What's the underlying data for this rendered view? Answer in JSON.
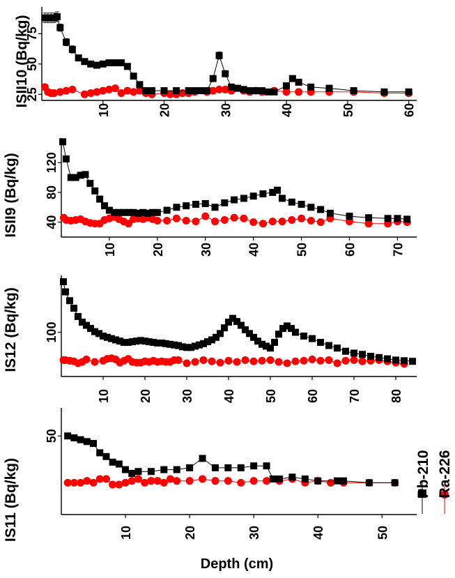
{
  "colors": {
    "pb": "#000000",
    "ra": "#ff0000",
    "axis": "#000000"
  },
  "legend": {
    "pb_label": "Pb-210",
    "ra_label": "Ra-226",
    "placement": "right, vertical"
  },
  "xlabel": "Depth (cm)",
  "chart_data": [
    {
      "type": "line",
      "ylabel": "ISII10 (Bq/kg)",
      "xlim": [
        0,
        61.3
      ],
      "ylim": [
        20,
        97
      ],
      "xticks": [
        10,
        20,
        30,
        40,
        50,
        60
      ],
      "yticks": [
        25,
        50,
        75
      ],
      "series": [
        {
          "name": "Pb-210",
          "marker": "square",
          "x": [
            0.5,
            1,
            1.5,
            2,
            2.5,
            3,
            4,
            5,
            6,
            7,
            8,
            9,
            10,
            11,
            12,
            13,
            14,
            15,
            16,
            17,
            18,
            20,
            22,
            24,
            25,
            26,
            27,
            28,
            29,
            30,
            31,
            32,
            33,
            34,
            35,
            36,
            37,
            38,
            40,
            41,
            42,
            44,
            47,
            51,
            56,
            60
          ],
          "y": [
            88,
            88,
            88,
            88,
            89,
            80,
            68,
            62,
            55,
            52,
            50,
            49,
            50,
            51,
            51,
            51,
            48,
            40,
            33,
            28,
            28,
            28,
            28,
            28,
            28,
            28,
            28,
            38,
            57,
            42,
            31,
            30,
            29,
            28,
            28,
            28,
            27,
            27,
            32,
            38,
            35,
            31,
            30,
            28,
            27,
            27
          ],
          "error": [
            4,
            4,
            4,
            4,
            4,
            3,
            3,
            3,
            2,
            2,
            2,
            2,
            2,
            2,
            2,
            2,
            2,
            0,
            0,
            0,
            0,
            0,
            0,
            0,
            0,
            0,
            0,
            0,
            3,
            0,
            0,
            0,
            0,
            0,
            0,
            0,
            0,
            0,
            0,
            0,
            0,
            0,
            0,
            0,
            0,
            0
          ]
        },
        {
          "name": "Ra-226",
          "marker": "circle",
          "x": [
            0.5,
            1,
            1.5,
            2,
            3,
            4,
            5,
            7,
            8,
            9,
            10,
            11,
            12,
            13,
            14,
            15,
            16,
            17,
            18,
            20,
            21,
            22,
            23,
            24,
            25,
            27,
            28,
            29,
            30,
            31,
            33,
            34,
            35,
            36,
            38,
            40,
            42,
            44,
            47,
            51,
            56,
            60
          ],
          "y": [
            31,
            27,
            26,
            26,
            27,
            28,
            29,
            25,
            26,
            27,
            28,
            29,
            30,
            26,
            28,
            27,
            28,
            26,
            25,
            26,
            25,
            25,
            26,
            26,
            27,
            27,
            28,
            29,
            29,
            28,
            28,
            27,
            28,
            27,
            28,
            27,
            27,
            27,
            27,
            27,
            26,
            26
          ]
        }
      ]
    },
    {
      "type": "line",
      "ylabel": "ISII9 (Bq/kg)",
      "xlim": [
        0,
        74
      ],
      "ylim": [
        20,
        153
      ],
      "xticks": [
        10,
        20,
        30,
        40,
        50,
        60,
        70
      ],
      "yticks": [
        40,
        80,
        120
      ],
      "series": [
        {
          "name": "Pb-210",
          "marker": "square",
          "x": [
            0.3,
            1,
            2,
            3,
            4,
            5,
            6,
            7,
            8,
            9,
            10,
            11,
            12,
            13,
            14,
            15,
            16,
            17,
            18,
            19,
            20,
            22,
            24,
            26,
            28,
            30,
            32,
            34,
            36,
            38,
            40,
            42,
            44,
            45,
            46,
            48,
            50,
            52,
            54,
            56,
            60,
            64,
            68,
            70,
            72
          ],
          "y": [
            148,
            125,
            100,
            100,
            103,
            104,
            92,
            82,
            71,
            62,
            56,
            53,
            53,
            53,
            53,
            53,
            52,
            53,
            52,
            53,
            53,
            56,
            60,
            62,
            64,
            65,
            60,
            66,
            70,
            72,
            75,
            78,
            80,
            83,
            72,
            67,
            64,
            60,
            57,
            52,
            48,
            46,
            45,
            45,
            44
          ]
        },
        {
          "name": "Ra-226",
          "marker": "circle",
          "x": [
            0.5,
            1,
            2,
            3,
            4,
            5,
            6,
            7,
            8,
            9,
            10,
            11,
            12,
            13,
            14,
            15,
            16,
            17,
            18,
            19,
            20,
            22,
            24,
            26,
            28,
            30,
            32,
            34,
            36,
            38,
            40,
            42,
            44,
            46,
            48,
            50,
            52,
            54,
            56,
            60,
            64,
            68,
            70,
            72
          ],
          "y": [
            46,
            43,
            42,
            43,
            44,
            41,
            39,
            38,
            38,
            43,
            45,
            47,
            44,
            41,
            38,
            44,
            45,
            44,
            46,
            44,
            42,
            42,
            45,
            42,
            41,
            48,
            41,
            43,
            46,
            45,
            40,
            38,
            41,
            41,
            43,
            45,
            42,
            40,
            45,
            41,
            38,
            38,
            41,
            40
          ]
        }
      ]
    },
    {
      "type": "line",
      "ylabel": "IS12 (Bq/kg)",
      "xlim": [
        0,
        85
      ],
      "ylim": [
        30,
        190
      ],
      "xticks": [
        10,
        20,
        30,
        40,
        50,
        60,
        70,
        80
      ],
      "yticks": [
        100
      ],
      "series": [
        {
          "name": "Pb-210",
          "marker": "square",
          "x": [
            0.5,
            1,
            2,
            3,
            4,
            5,
            6,
            7,
            8,
            9,
            10,
            11,
            12,
            13,
            14,
            15,
            16,
            17,
            18,
            19,
            20,
            21,
            22,
            23,
            24,
            25,
            26,
            27,
            28,
            29,
            30,
            31,
            32,
            33,
            34,
            35,
            36,
            37,
            38,
            39,
            40,
            41,
            42,
            43,
            44,
            45,
            46,
            47,
            48,
            49,
            50,
            51,
            52,
            53,
            54,
            55,
            56,
            58,
            60,
            62,
            64,
            66,
            68,
            70,
            72,
            74,
            76,
            78,
            80,
            82,
            84
          ],
          "y": [
            180,
            164,
            150,
            138,
            125,
            116,
            111,
            106,
            101,
            98,
            94,
            92,
            90,
            88,
            86,
            84,
            84,
            85,
            86,
            87,
            86,
            85,
            84,
            83,
            83,
            82,
            81,
            80,
            79,
            77,
            76,
            76,
            78,
            80,
            82,
            85,
            88,
            92,
            98,
            107,
            116,
            122,
            117,
            111,
            104,
            98,
            92,
            86,
            81,
            78,
            75,
            84,
            97,
            106,
            110,
            106,
            100,
            94,
            90,
            84,
            79,
            75,
            70,
            67,
            65,
            62,
            60,
            58,
            56,
            55,
            54
          ]
        },
        {
          "name": "Ra-226",
          "marker": "circle",
          "x": [
            0.5,
            1,
            2,
            3,
            4,
            5,
            6,
            8,
            10,
            11,
            12,
            13,
            14,
            15,
            16,
            17,
            18,
            19,
            20,
            21,
            22,
            23,
            24,
            25,
            26,
            27,
            28,
            30,
            32,
            34,
            36,
            38,
            40,
            42,
            44,
            46,
            48,
            50,
            52,
            54,
            56,
            58,
            60,
            62,
            64,
            66,
            68,
            70,
            72,
            74,
            76,
            78,
            80,
            82
          ],
          "y": [
            56,
            56,
            55,
            54,
            51,
            53,
            57,
            53,
            55,
            58,
            59,
            57,
            52,
            55,
            58,
            53,
            52,
            52,
            54,
            53,
            55,
            53,
            54,
            53,
            53,
            56,
            56,
            51,
            53,
            56,
            54,
            52,
            55,
            53,
            56,
            54,
            55,
            56,
            53,
            51,
            54,
            55,
            57,
            55,
            56,
            51,
            55,
            56,
            54,
            55,
            56,
            54,
            52,
            50
          ]
        }
      ]
    },
    {
      "type": "line",
      "ylabel": "IS11 (Bq/kg)",
      "xlim": [
        0,
        55.4
      ],
      "ylim": [
        8,
        65
      ],
      "xticks": [
        10,
        20,
        30,
        40,
        50
      ],
      "yticks": [
        50
      ],
      "series": [
        {
          "name": "Pb-210",
          "marker": "square",
          "x": [
            1,
            2,
            3,
            4,
            5,
            6,
            7,
            8,
            9,
            10,
            11,
            12,
            14,
            16,
            18,
            20,
            22,
            24,
            26,
            28,
            30,
            32,
            33,
            34,
            36,
            38,
            40,
            43,
            44,
            48,
            52
          ],
          "y": [
            50,
            49,
            48,
            47,
            46,
            41,
            39,
            36,
            35,
            32,
            30,
            31,
            31,
            32,
            32,
            33,
            38,
            33,
            33,
            33,
            34,
            34,
            27,
            27,
            28,
            27,
            26,
            26,
            26,
            25,
            25
          ]
        },
        {
          "name": "Ra-226",
          "marker": "circle",
          "x": [
            1,
            2,
            3,
            4,
            5,
            6,
            7,
            8,
            9,
            10,
            11,
            12,
            13,
            14,
            15,
            16,
            17,
            18,
            20,
            22,
            24,
            26,
            28,
            30,
            32,
            34,
            36,
            38,
            40,
            42,
            44,
            48,
            52
          ],
          "y": [
            25,
            25,
            25,
            26,
            25,
            27,
            27,
            24,
            24,
            25,
            26,
            27,
            25,
            26,
            26,
            25,
            27,
            26,
            26,
            27,
            26,
            26,
            25,
            26,
            26,
            26,
            27,
            25,
            26,
            25,
            25,
            25,
            25
          ]
        }
      ]
    }
  ]
}
